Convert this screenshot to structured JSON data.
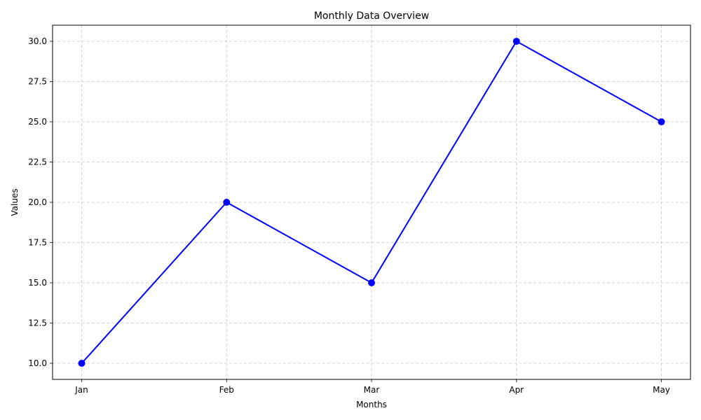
{
  "chart_data": {
    "type": "line",
    "title": "Monthly Data Overview",
    "xlabel": "Months",
    "ylabel": "Values",
    "categories": [
      "Jan",
      "Feb",
      "Mar",
      "Apr",
      "May"
    ],
    "series": [
      {
        "values": [
          10,
          20,
          15,
          30,
          25
        ],
        "color": "#0000ff",
        "marker": "circle"
      }
    ],
    "ylim": [
      9,
      31
    ],
    "yticks": [
      10.0,
      12.5,
      15.0,
      17.5,
      20.0,
      22.5,
      25.0,
      27.5,
      30.0
    ],
    "ytick_labels": [
      "10.0",
      "12.5",
      "15.0",
      "17.5",
      "20.0",
      "22.5",
      "25.0",
      "27.5",
      "30.0"
    ],
    "grid": true
  }
}
